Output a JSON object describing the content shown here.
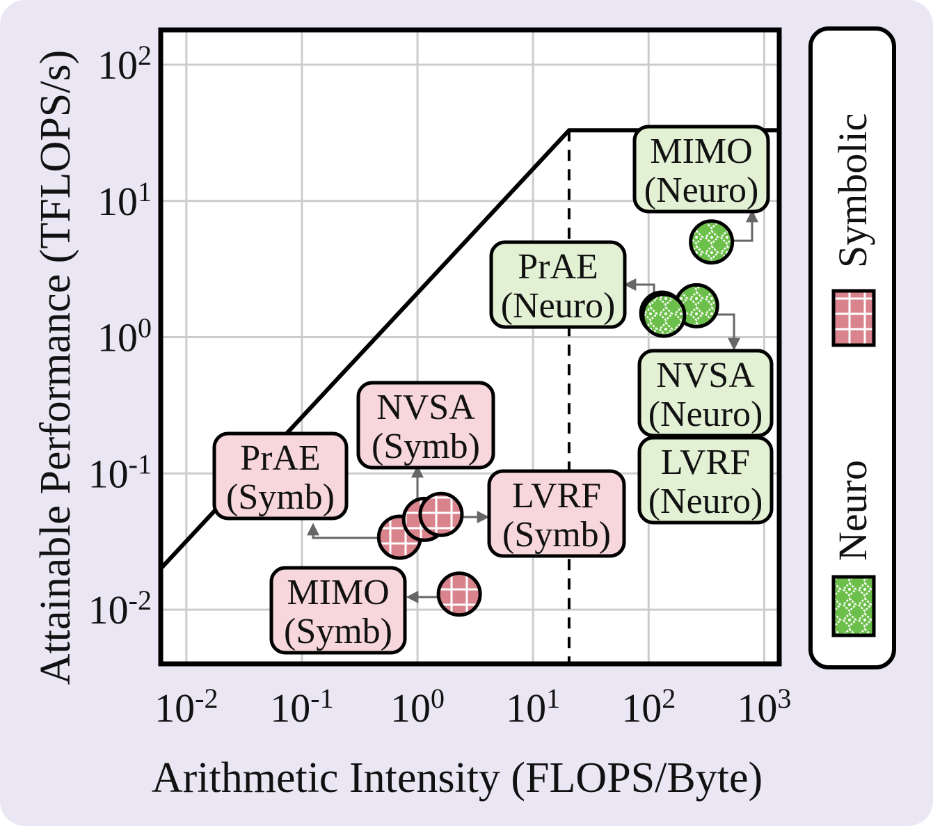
{
  "chart_data": {
    "type": "scatter",
    "subtype": "roofline",
    "xlabel": "Arithmetic Intensity (FLOPS/Byte)",
    "ylabel": "Attainable Performance (TFLOPS/s)",
    "x_scale": "log",
    "y_scale": "log",
    "xlim": [
      0.006,
      1350
    ],
    "ylim": [
      0.004,
      180
    ],
    "grid": true,
    "x_ticks": [
      {
        "value": 0.01,
        "base": "10",
        "exp": "-2"
      },
      {
        "value": 0.1,
        "base": "10",
        "exp": "-1"
      },
      {
        "value": 1,
        "base": "10",
        "exp": "0"
      },
      {
        "value": 10,
        "base": "10",
        "exp": "1"
      },
      {
        "value": 100,
        "base": "10",
        "exp": "2"
      },
      {
        "value": 1000,
        "base": "10",
        "exp": "3"
      }
    ],
    "y_ticks": [
      {
        "value": 0.01,
        "base": "10",
        "exp": "-2"
      },
      {
        "value": 0.1,
        "base": "10",
        "exp": "-1"
      },
      {
        "value": 1,
        "base": "10",
        "exp": "0"
      },
      {
        "value": 10,
        "base": "10",
        "exp": "1"
      },
      {
        "value": 100,
        "base": "10",
        "exp": "2"
      }
    ],
    "roofline": {
      "points": [
        [
          0.006,
          0.02
        ],
        [
          20.5,
          33
        ],
        [
          1350,
          33
        ]
      ],
      "ridge_x": 20.5
    },
    "legend": {
      "placement": "right, vertical",
      "entries": [
        {
          "label": "Symbolic",
          "color": "#d9838c"
        },
        {
          "label": "Neuro",
          "color": "#6cbf4a"
        }
      ]
    },
    "series": [
      {
        "name": "Symbolic",
        "color": "#d9838c",
        "points": [
          {
            "x": 0.7,
            "y": 0.034,
            "label_line1": "PrAE",
            "label_line2": "(Symb)"
          },
          {
            "x": 1.15,
            "y": 0.046,
            "label_line1": "NVSA",
            "label_line2": "(Symb)"
          },
          {
            "x": 1.6,
            "y": 0.05,
            "label_line1": "LVRF",
            "label_line2": "(Symb)"
          },
          {
            "x": 2.3,
            "y": 0.013,
            "label_line1": "MIMO",
            "label_line2": "(Symb)"
          }
        ]
      },
      {
        "name": "Neuro",
        "color": "#6cbf4a",
        "points": [
          {
            "x": 130,
            "y": 1.5,
            "label_line1": "PrAE",
            "label_line2": "(Neuro)"
          },
          {
            "x": 260,
            "y": 1.7,
            "label_line1": "NVSA",
            "label_line2": "(Neuro)"
          },
          {
            "x": 135,
            "y": 1.45,
            "label_line1": "LVRF",
            "label_line2": "(Neuro)"
          },
          {
            "x": 350,
            "y": 5,
            "label_line1": "MIMO",
            "label_line2": "(Neuro)"
          }
        ]
      }
    ]
  }
}
